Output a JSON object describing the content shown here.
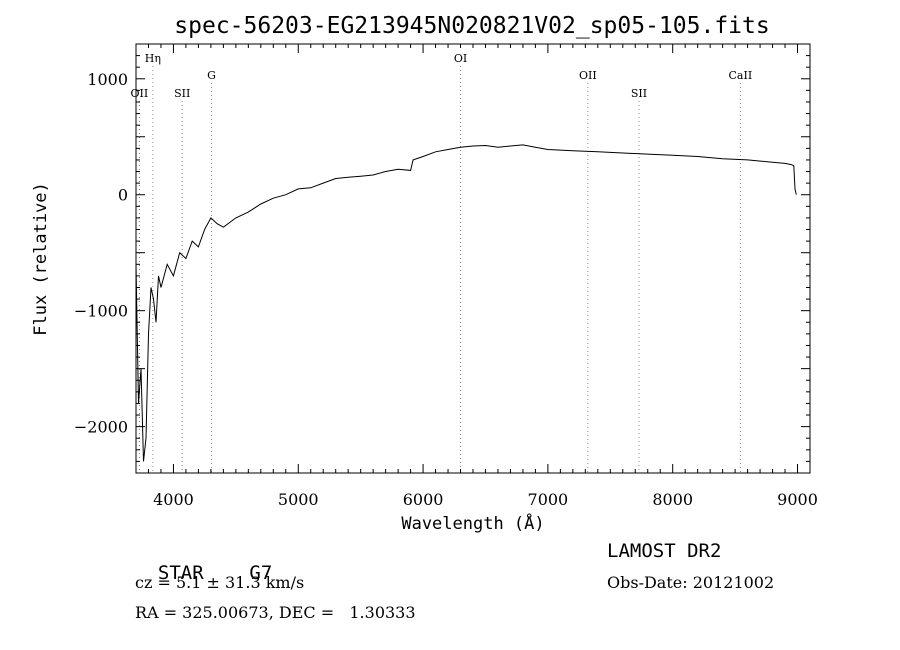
{
  "chart_data": {
    "type": "line",
    "title": "spec-56203-EG213945N020821V02_sp05-105.fits",
    "xlabel": "Wavelength (Å)",
    "ylabel": "Flux (relative)",
    "xlim": [
      3700,
      9100
    ],
    "ylim": [
      -2400,
      1300
    ],
    "x_ticks": [
      4000,
      5000,
      6000,
      7000,
      8000,
      9000
    ],
    "y_ticks": [
      1000,
      0,
      -1000,
      -2000
    ],
    "x_tick_labels": [
      "4000",
      "5000",
      "6000",
      "7000",
      "8000",
      "9000"
    ],
    "y_tick_labels": [
      "1000",
      "0",
      "−1000",
      "−2000"
    ],
    "series": [
      {
        "x": [
          3700,
          3720,
          3740,
          3760,
          3780,
          3800,
          3820,
          3840,
          3860,
          3880,
          3900,
          3950,
          4000,
          4050,
          4100,
          4150,
          4200,
          4250,
          4300,
          4350,
          4400,
          4500,
          4600,
          4700,
          4800,
          4900,
          5000,
          5100,
          5200,
          5300,
          5400,
          5500,
          5600,
          5700,
          5800,
          5900,
          5920,
          6000,
          6100,
          6200,
          6300,
          6400,
          6500,
          6600,
          6700,
          6800,
          6900,
          7000,
          7200,
          7400,
          7600,
          7800,
          8000,
          8200,
          8400,
          8600,
          8800,
          8900,
          8950,
          8970,
          8980,
          8990
        ],
        "y": [
          -600,
          -1800,
          -1500,
          -2300,
          -2100,
          -1200,
          -800,
          -900,
          -1100,
          -700,
          -800,
          -600,
          -700,
          -500,
          -550,
          -400,
          -450,
          -300,
          -200,
          -250,
          -280,
          -200,
          -150,
          -80,
          -30,
          0,
          50,
          60,
          100,
          140,
          150,
          160,
          170,
          200,
          220,
          210,
          300,
          330,
          370,
          390,
          410,
          420,
          425,
          410,
          420,
          430,
          410,
          390,
          380,
          370,
          360,
          350,
          340,
          330,
          310,
          300,
          280,
          270,
          260,
          250,
          50,
          0
        ]
      }
    ],
    "lines": [
      {
        "label": "Hη",
        "wavelength": 3835,
        "row": 0
      },
      {
        "label": "OII",
        "wavelength": 3727,
        "row": 2
      },
      {
        "label": "SII",
        "wavelength": 4070,
        "row": 2
      },
      {
        "label": "G",
        "wavelength": 4305,
        "row": 1
      },
      {
        "label": "OI",
        "wavelength": 6300,
        "row": 0
      },
      {
        "label": "OII",
        "wavelength": 7320,
        "row": 1
      },
      {
        "label": "SII",
        "wavelength": 7730,
        "row": 2
      },
      {
        "label": "CaII",
        "wavelength": 8542,
        "row": 1
      }
    ],
    "grid": false,
    "legend": "none"
  },
  "info": {
    "object_class": "STAR",
    "subclass": "G7",
    "cz": "cz = 5.1 ± 31.3 km/s",
    "coords": "RA = 325.00673, DEC =   1.30333",
    "survey": "LAMOST DR2",
    "obs_date": "Obs-Date: 20121002"
  }
}
